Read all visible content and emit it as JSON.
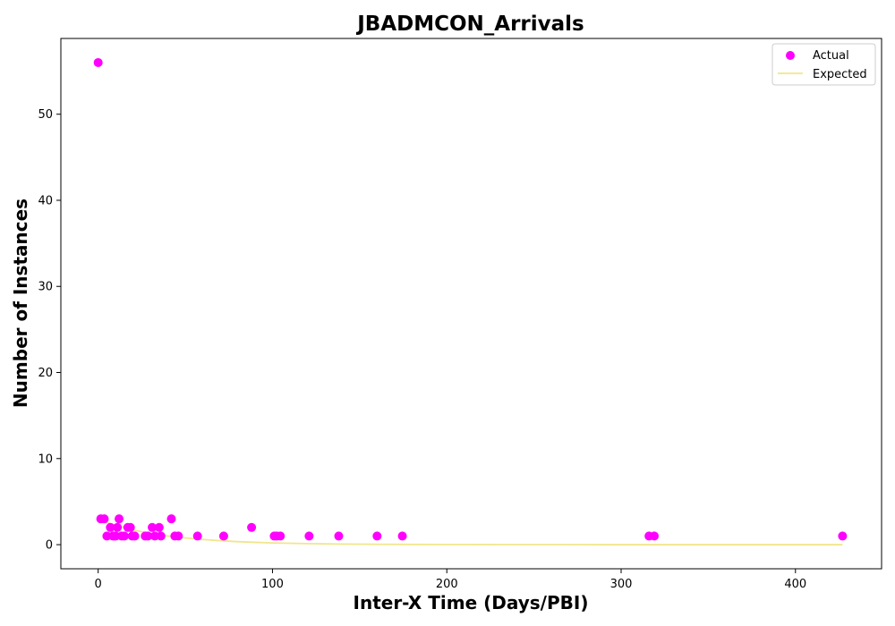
{
  "chart_data": {
    "type": "scatter",
    "title": "JBADMCON_Arrivals",
    "xlabel": "Inter-X Time (Days/PBI)",
    "ylabel": "Number of Instances",
    "xlim": [
      -21.4,
      449.4
    ],
    "ylim": [
      -2.8,
      58.8
    ],
    "xticks": [
      0,
      100,
      200,
      300,
      400
    ],
    "yticks": [
      0,
      10,
      20,
      30,
      40,
      50
    ],
    "grid": false,
    "legend_position": "top-right",
    "colors": {
      "actual": "#ff00ff",
      "expected": "#f0e68c"
    },
    "series": [
      {
        "name": "Actual",
        "kind": "scatter",
        "points": [
          [
            0,
            56
          ],
          [
            1.5,
            3
          ],
          [
            3.5,
            3
          ],
          [
            5,
            1
          ],
          [
            7,
            2
          ],
          [
            8.5,
            1
          ],
          [
            10,
            1
          ],
          [
            11,
            2
          ],
          [
            12,
            3
          ],
          [
            13.5,
            1
          ],
          [
            15,
            1
          ],
          [
            17,
            2
          ],
          [
            18.5,
            2
          ],
          [
            19.5,
            1
          ],
          [
            21,
            1
          ],
          [
            27,
            1
          ],
          [
            28.5,
            1
          ],
          [
            31,
            2
          ],
          [
            32.5,
            1
          ],
          [
            35,
            2
          ],
          [
            36,
            1
          ],
          [
            42,
            3
          ],
          [
            44,
            1
          ],
          [
            46,
            1
          ],
          [
            57,
            1
          ],
          [
            72,
            1
          ],
          [
            88,
            2
          ],
          [
            101,
            1
          ],
          [
            102.5,
            1
          ],
          [
            104.5,
            1
          ],
          [
            121,
            1
          ],
          [
            138,
            1
          ],
          [
            160,
            1
          ],
          [
            174.5,
            1
          ],
          [
            316,
            1
          ],
          [
            319,
            1
          ],
          [
            427,
            1
          ]
        ]
      },
      {
        "name": "Expected",
        "kind": "line",
        "points": [
          [
            0,
            2.9
          ],
          [
            10,
            2.25
          ],
          [
            20,
            1.7
          ],
          [
            30,
            1.3
          ],
          [
            40,
            1.0
          ],
          [
            50,
            0.78
          ],
          [
            60,
            0.6
          ],
          [
            70,
            0.46
          ],
          [
            80,
            0.35
          ],
          [
            90,
            0.27
          ],
          [
            100,
            0.2
          ],
          [
            120,
            0.12
          ],
          [
            140,
            0.07
          ],
          [
            160,
            0.04
          ],
          [
            180,
            0.025
          ],
          [
            200,
            0.015
          ],
          [
            250,
            0.004
          ],
          [
            300,
            0.001
          ],
          [
            350,
            0.0003
          ],
          [
            427,
            0
          ]
        ]
      }
    ]
  }
}
